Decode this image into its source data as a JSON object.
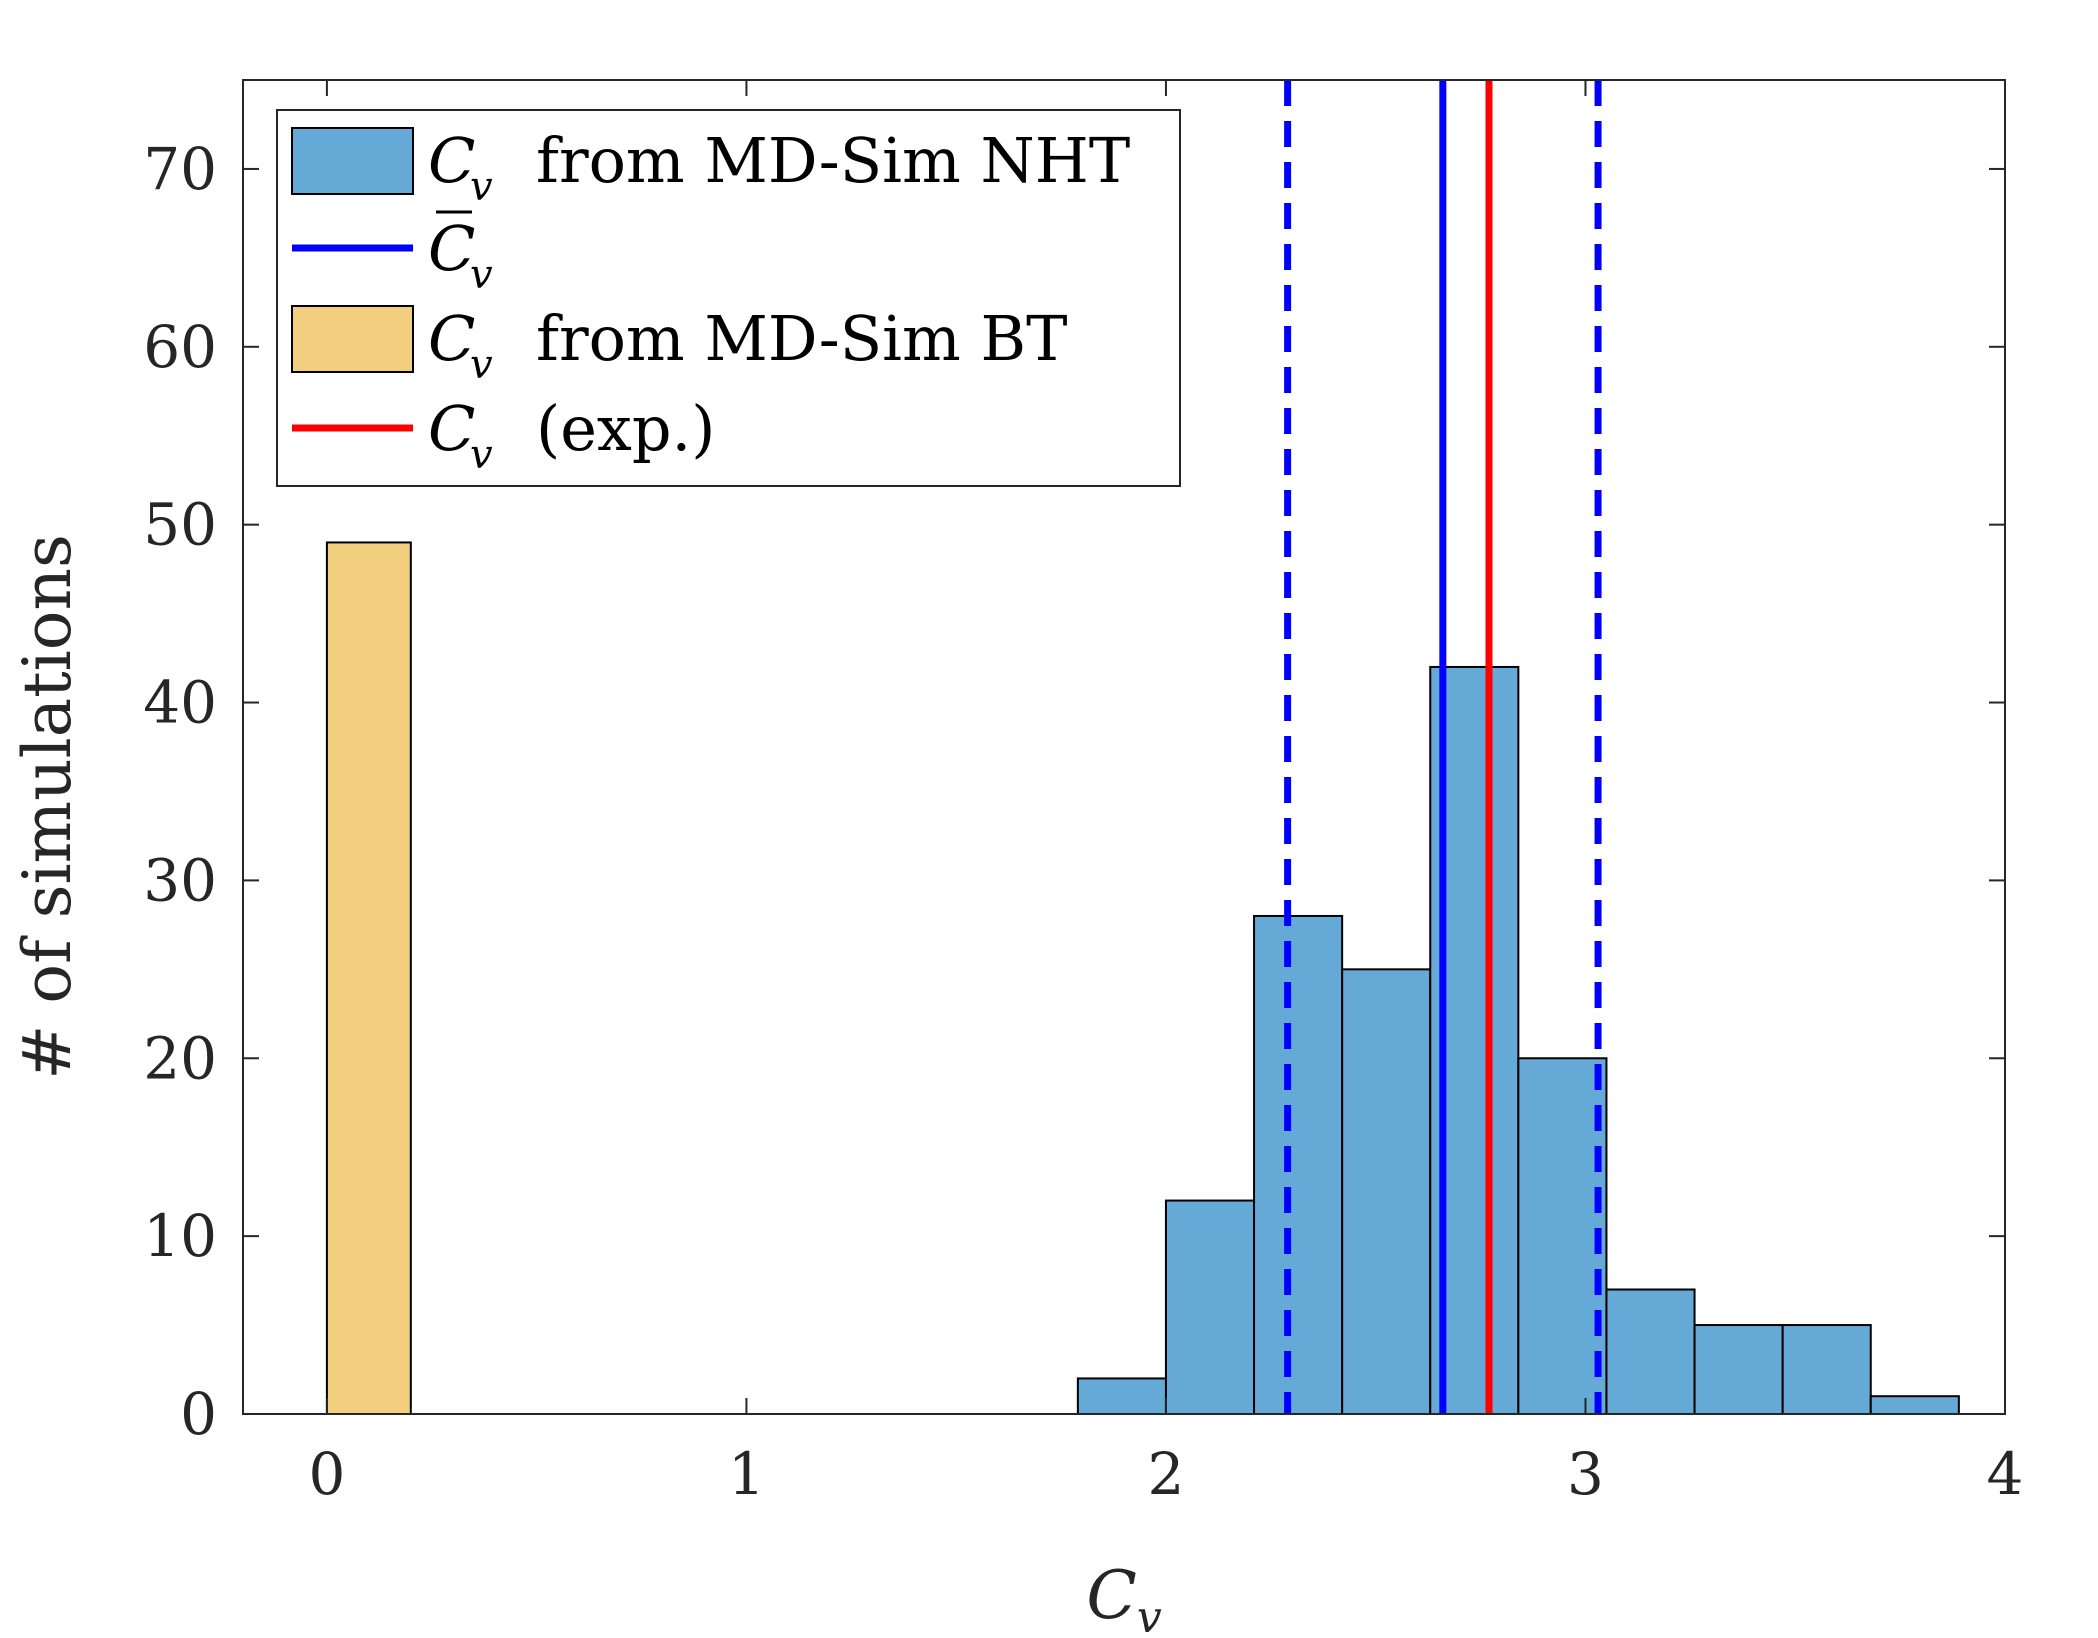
{
  "chart_data": {
    "type": "bar",
    "xlabel": "C",
    "xlabel_sub": "v",
    "ylabel": "# of simulations",
    "xlim": [
      -0.2,
      4
    ],
    "ylim": [
      0,
      75
    ],
    "xticks": [
      0,
      1,
      2,
      3,
      4
    ],
    "yticks": [
      0,
      10,
      20,
      30,
      40,
      50,
      60,
      70
    ],
    "grid": false,
    "legend_position": "top-left",
    "series": [
      {
        "name": "C_v from MD-Sim NHT",
        "type": "histogram",
        "color": "#65a9d7",
        "bins": [
          {
            "x0": 1.79,
            "x1": 2.0,
            "count": 2
          },
          {
            "x0": 2.0,
            "x1": 2.21,
            "count": 12
          },
          {
            "x0": 2.21,
            "x1": 2.42,
            "count": 28
          },
          {
            "x0": 2.42,
            "x1": 2.63,
            "count": 25
          },
          {
            "x0": 2.63,
            "x1": 2.84,
            "count": 42
          },
          {
            "x0": 2.84,
            "x1": 3.05,
            "count": 20
          },
          {
            "x0": 3.05,
            "x1": 3.26,
            "count": 7
          },
          {
            "x0": 3.26,
            "x1": 3.47,
            "count": 5
          },
          {
            "x0": 3.47,
            "x1": 3.68,
            "count": 5
          },
          {
            "x0": 3.68,
            "x1": 3.89,
            "count": 1
          }
        ]
      },
      {
        "name": "C_v from MD-Sim BT",
        "type": "histogram",
        "color": "#f2cf7e",
        "bins": [
          {
            "x0": 0.0,
            "x1": 0.2,
            "count": 49
          }
        ]
      }
    ],
    "vlines": [
      {
        "name": "mean C_v",
        "x": 2.66,
        "color": "#0000ff",
        "style": "solid"
      },
      {
        "name": "mean C_v - std",
        "x": 2.29,
        "color": "#0000ff",
        "style": "dashed"
      },
      {
        "name": "mean C_v + std",
        "x": 3.03,
        "color": "#0000ff",
        "style": "dashed"
      },
      {
        "name": "C_v (exp.)",
        "x": 2.77,
        "color": "#ff0000",
        "style": "solid"
      }
    ],
    "legend": [
      {
        "kind": "patch",
        "color": "#65a9d7",
        "sym": "C",
        "sub": "v",
        "bar": false,
        "text": "from MD-Sim NHT"
      },
      {
        "kind": "line",
        "color": "#0000ff",
        "sym": "C",
        "sub": "v",
        "bar": true,
        "text": ""
      },
      {
        "kind": "patch",
        "color": "#f2cf7e",
        "sym": "C",
        "sub": "v",
        "bar": false,
        "text": "from MD-Sim BT"
      },
      {
        "kind": "line",
        "color": "#ff0000",
        "sym": "C",
        "sub": "v",
        "bar": false,
        "text": "(exp.)"
      }
    ]
  }
}
